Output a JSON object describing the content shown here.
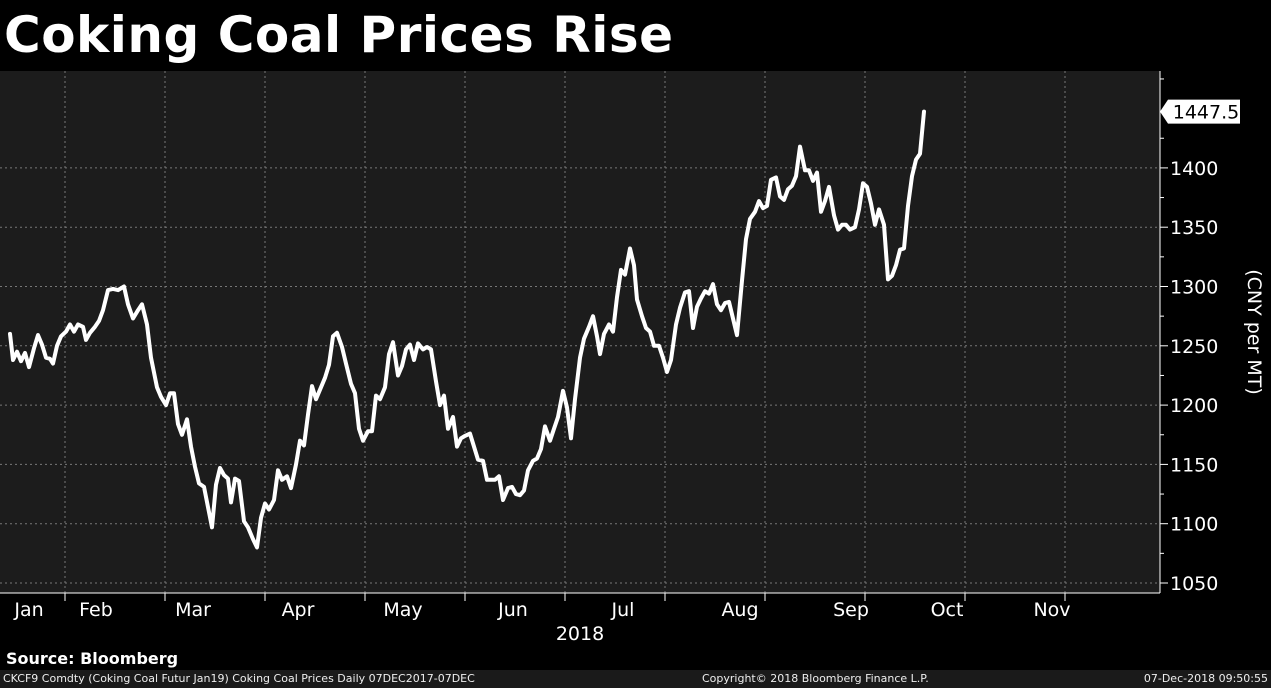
{
  "title": "Coking Coal Prices Rise",
  "source": "Source: Bloomberg",
  "footer": {
    "left": "CKCF9 Comdty (Coking Coal Futur Jan19) Coking Coal Prices  Daily 07DEC2017-07DEC",
    "center": "Copyright© 2018 Bloomberg Finance L.P.",
    "right": "07-Dec-2018 09:50:55"
  },
  "colors": {
    "background": "#000000",
    "plot_background": "#1c1c1c",
    "line": "#ffffff",
    "grid": "#777777"
  },
  "chart_data": {
    "type": "line",
    "title": "Coking Coal Prices Rise",
    "ylabel": "(CNY per MT)",
    "xlabel": "2018",
    "ylim": [
      1040,
      1490
    ],
    "yticks": [
      1050,
      1100,
      1150,
      1200,
      1250,
      1300,
      1350,
      1400
    ],
    "ytick_labels": [
      "1050",
      "1100",
      "1150",
      "1200",
      "1250",
      "1300",
      "1350",
      "1400"
    ],
    "x_year_label": "2018",
    "xrange": [
      0,
      11.16
    ],
    "month_ticks": [
      {
        "label": "Jan",
        "x": 0.0
      },
      {
        "label": "Feb",
        "x": 1.0
      },
      {
        "label": "Mar",
        "x": 2.0
      },
      {
        "label": "Apr",
        "x": 3.0
      },
      {
        "label": "May",
        "x": 4.0
      },
      {
        "label": "Jun",
        "x": 5.0
      },
      {
        "label": "Jul",
        "x": 6.0
      },
      {
        "label": "Aug",
        "x": 7.0
      },
      {
        "label": "Sep",
        "x": 8.0
      },
      {
        "label": "Oct",
        "x": 9.0
      },
      {
        "label": "Nov",
        "x": 10.0
      }
    ],
    "last_value_label": "1447.5",
    "grid": true,
    "series": [
      {
        "values": [
          [
            0.0,
            1260
          ],
          [
            0.03,
            1238
          ],
          [
            0.07,
            1245
          ],
          [
            0.11,
            1237
          ],
          [
            0.15,
            1244
          ],
          [
            0.19,
            1232
          ],
          [
            0.24,
            1248
          ],
          [
            0.28,
            1259
          ],
          [
            0.32,
            1251
          ],
          [
            0.36,
            1240
          ],
          [
            0.4,
            1239
          ],
          [
            0.43,
            1235
          ],
          [
            0.47,
            1250
          ],
          [
            0.51,
            1258
          ],
          [
            0.56,
            1262
          ],
          [
            0.6,
            1268
          ],
          [
            0.64,
            1262
          ],
          [
            0.68,
            1268
          ],
          [
            0.73,
            1266
          ],
          [
            0.76,
            1255
          ],
          [
            0.8,
            1261
          ],
          [
            0.85,
            1266
          ],
          [
            0.89,
            1271
          ],
          [
            0.93,
            1280
          ],
          [
            0.98,
            1297
          ],
          [
            1.03,
            1298
          ],
          [
            1.08,
            1297
          ],
          [
            1.14,
            1300
          ],
          [
            1.18,
            1285
          ],
          [
            1.23,
            1273
          ],
          [
            1.28,
            1280
          ],
          [
            1.32,
            1285
          ],
          [
            1.37,
            1268
          ],
          [
            1.41,
            1240
          ],
          [
            1.47,
            1215
          ],
          [
            1.51,
            1207
          ],
          [
            1.56,
            1200
          ],
          [
            1.6,
            1210
          ],
          [
            1.64,
            1210
          ],
          [
            1.68,
            1184
          ],
          [
            1.72,
            1175
          ],
          [
            1.77,
            1188
          ],
          [
            1.81,
            1165
          ],
          [
            1.85,
            1148
          ],
          [
            1.89,
            1134
          ],
          [
            1.94,
            1131
          ],
          [
            1.98,
            1114
          ],
          [
            2.02,
            1097
          ],
          [
            2.06,
            1133
          ],
          [
            2.1,
            1147
          ],
          [
            2.14,
            1141
          ],
          [
            2.18,
            1138
          ],
          [
            2.21,
            1118
          ],
          [
            2.25,
            1138
          ],
          [
            2.29,
            1136
          ],
          [
            2.34,
            1102
          ],
          [
            2.38,
            1097
          ],
          [
            2.43,
            1087
          ],
          [
            2.47,
            1080
          ],
          [
            2.51,
            1105
          ],
          [
            2.55,
            1117
          ],
          [
            2.59,
            1112
          ],
          [
            2.64,
            1120
          ],
          [
            2.68,
            1145
          ],
          [
            2.72,
            1137
          ],
          [
            2.77,
            1140
          ],
          [
            2.81,
            1130
          ],
          [
            2.86,
            1150
          ],
          [
            2.9,
            1170
          ],
          [
            2.94,
            1166
          ],
          [
            2.98,
            1192
          ],
          [
            3.02,
            1216
          ],
          [
            3.06,
            1205
          ],
          [
            3.1,
            1213
          ],
          [
            3.15,
            1223
          ],
          [
            3.19,
            1234
          ],
          [
            3.23,
            1258
          ],
          [
            3.27,
            1261
          ],
          [
            3.32,
            1249
          ],
          [
            3.36,
            1235
          ],
          [
            3.41,
            1218
          ],
          [
            3.45,
            1210
          ],
          [
            3.49,
            1180
          ],
          [
            3.53,
            1170
          ],
          [
            3.58,
            1178
          ],
          [
            3.62,
            1178
          ],
          [
            3.66,
            1208
          ],
          [
            3.7,
            1205
          ],
          [
            3.75,
            1215
          ],
          [
            3.79,
            1243
          ],
          [
            3.83,
            1253
          ],
          [
            3.88,
            1225
          ],
          [
            3.92,
            1233
          ],
          [
            3.96,
            1247
          ],
          [
            4.0,
            1251
          ],
          [
            4.04,
            1238
          ],
          [
            4.08,
            1252
          ],
          [
            4.13,
            1247
          ],
          [
            4.17,
            1249
          ],
          [
            4.21,
            1247
          ],
          [
            4.26,
            1220
          ],
          [
            4.3,
            1200
          ],
          [
            4.34,
            1208
          ],
          [
            4.38,
            1180
          ],
          [
            4.43,
            1190
          ],
          [
            4.47,
            1165
          ],
          [
            4.51,
            1172
          ],
          [
            4.55,
            1174
          ],
          [
            4.6,
            1176
          ],
          [
            4.64,
            1165
          ],
          [
            4.68,
            1154
          ],
          [
            4.73,
            1153
          ],
          [
            4.77,
            1137
          ],
          [
            4.81,
            1137
          ],
          [
            4.85,
            1137
          ],
          [
            4.89,
            1140
          ],
          [
            4.93,
            1120
          ],
          [
            4.98,
            1130
          ],
          [
            5.02,
            1131
          ],
          [
            5.06,
            1125
          ],
          [
            5.1,
            1124
          ],
          [
            5.14,
            1128
          ],
          [
            5.18,
            1145
          ],
          [
            5.23,
            1153
          ],
          [
            5.27,
            1155
          ],
          [
            5.31,
            1163
          ],
          [
            5.35,
            1182
          ],
          [
            5.4,
            1170
          ],
          [
            5.44,
            1180
          ],
          [
            5.48,
            1190
          ],
          [
            5.53,
            1212
          ],
          [
            5.57,
            1198
          ],
          [
            5.61,
            1172
          ],
          [
            5.65,
            1205
          ],
          [
            5.7,
            1240
          ],
          [
            5.74,
            1256
          ],
          [
            5.79,
            1266
          ],
          [
            5.83,
            1275
          ],
          [
            5.87,
            1258
          ],
          [
            5.9,
            1243
          ],
          [
            5.94,
            1260
          ],
          [
            5.99,
            1268
          ],
          [
            6.03,
            1262
          ],
          [
            6.07,
            1291
          ],
          [
            6.11,
            1314
          ],
          [
            6.15,
            1310
          ],
          [
            6.2,
            1332
          ],
          [
            6.24,
            1318
          ],
          [
            6.27,
            1289
          ],
          [
            6.32,
            1275
          ],
          [
            6.36,
            1265
          ],
          [
            6.4,
            1262
          ],
          [
            6.44,
            1250
          ],
          [
            6.49,
            1250
          ],
          [
            6.53,
            1240
          ],
          [
            6.57,
            1228
          ],
          [
            6.61,
            1238
          ],
          [
            6.66,
            1268
          ],
          [
            6.7,
            1282
          ],
          [
            6.75,
            1295
          ],
          [
            6.79,
            1296
          ],
          [
            6.83,
            1265
          ],
          [
            6.87,
            1283
          ],
          [
            6.91,
            1290
          ],
          [
            6.95,
            1296
          ],
          [
            6.99,
            1294
          ],
          [
            7.03,
            1302
          ],
          [
            7.07,
            1285
          ],
          [
            7.11,
            1280
          ],
          [
            7.15,
            1286
          ],
          [
            7.19,
            1287
          ],
          [
            7.23,
            1273
          ],
          [
            7.27,
            1259
          ],
          [
            7.32,
            1305
          ],
          [
            7.36,
            1340
          ],
          [
            7.4,
            1357
          ],
          [
            7.45,
            1363
          ],
          [
            7.49,
            1372
          ],
          [
            7.53,
            1366
          ],
          [
            7.57,
            1368
          ],
          [
            7.61,
            1390
          ],
          [
            7.66,
            1392
          ],
          [
            7.7,
            1376
          ],
          [
            7.74,
            1373
          ],
          [
            7.78,
            1382
          ],
          [
            7.82,
            1385
          ],
          [
            7.86,
            1393
          ],
          [
            7.9,
            1418
          ],
          [
            7.95,
            1398
          ],
          [
            7.99,
            1398
          ],
          [
            8.03,
            1389
          ],
          [
            8.07,
            1396
          ],
          [
            8.11,
            1363
          ],
          [
            8.15,
            1372
          ],
          [
            8.19,
            1384
          ],
          [
            8.24,
            1360
          ],
          [
            8.28,
            1348
          ],
          [
            8.32,
            1352
          ],
          [
            8.36,
            1352
          ],
          [
            8.4,
            1348
          ],
          [
            8.45,
            1350
          ],
          [
            8.49,
            1365
          ],
          [
            8.53,
            1387
          ],
          [
            8.57,
            1384
          ],
          [
            8.61,
            1370
          ],
          [
            8.65,
            1352
          ],
          [
            8.69,
            1365
          ],
          [
            8.74,
            1352
          ],
          [
            8.78,
            1306
          ],
          [
            8.82,
            1309
          ],
          [
            8.86,
            1318
          ],
          [
            8.9,
            1331
          ],
          [
            8.94,
            1332
          ],
          [
            8.98,
            1368
          ],
          [
            9.02,
            1393
          ],
          [
            9.06,
            1407
          ],
          [
            9.1,
            1412
          ],
          [
            9.14,
            1447.5
          ]
        ]
      }
    ]
  }
}
